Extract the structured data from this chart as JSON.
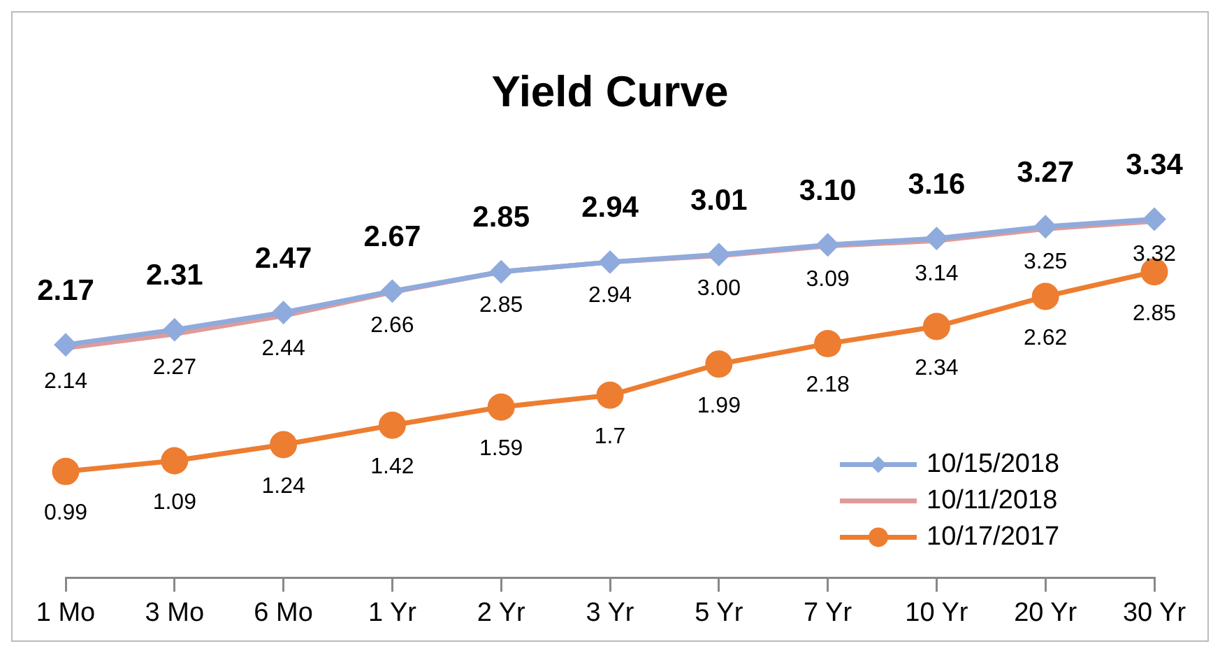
{
  "chart_data": {
    "type": "line",
    "title": "Yield Curve",
    "categories": [
      "1 Mo",
      "3 Mo",
      "6 Mo",
      "1 Yr",
      "2 Yr",
      "3 Yr",
      "5 Yr",
      "7 Yr",
      "10 Yr",
      "20 Yr",
      "30 Yr"
    ],
    "series": [
      {
        "name": "10/15/2018",
        "color": "#8faadc",
        "marker": "diamond",
        "values": [
          2.17,
          2.31,
          2.47,
          2.67,
          2.85,
          2.94,
          3.01,
          3.1,
          3.16,
          3.27,
          3.34
        ],
        "value_labels": [
          "2.17",
          "2.31",
          "2.47",
          "2.67",
          "2.85",
          "2.94",
          "3.01",
          "3.10",
          "3.16",
          "3.27",
          "3.34"
        ]
      },
      {
        "name": "10/11/2018",
        "color": "#df9b99",
        "marker": "none",
        "values": [
          2.14,
          2.27,
          2.44,
          2.66,
          2.85,
          2.94,
          3.0,
          3.09,
          3.14,
          3.25,
          3.32
        ],
        "value_labels": [
          "2.14",
          "2.27",
          "2.44",
          "2.66",
          "2.85",
          "2.94",
          "3.00",
          "3.09",
          "3.14",
          "3.25",
          "3.32"
        ]
      },
      {
        "name": "10/17/2017",
        "color": "#ed7d31",
        "marker": "circle",
        "values": [
          0.99,
          1.09,
          1.24,
          1.42,
          1.59,
          1.7,
          1.99,
          2.18,
          2.34,
          2.62,
          2.85
        ],
        "value_labels": [
          "0.99",
          "1.09",
          "1.24",
          "1.42",
          "1.59",
          "1.7",
          "1.99",
          "2.18",
          "2.34",
          "2.62",
          "2.85"
        ]
      }
    ],
    "legend": "bottom right",
    "grid": false
  }
}
